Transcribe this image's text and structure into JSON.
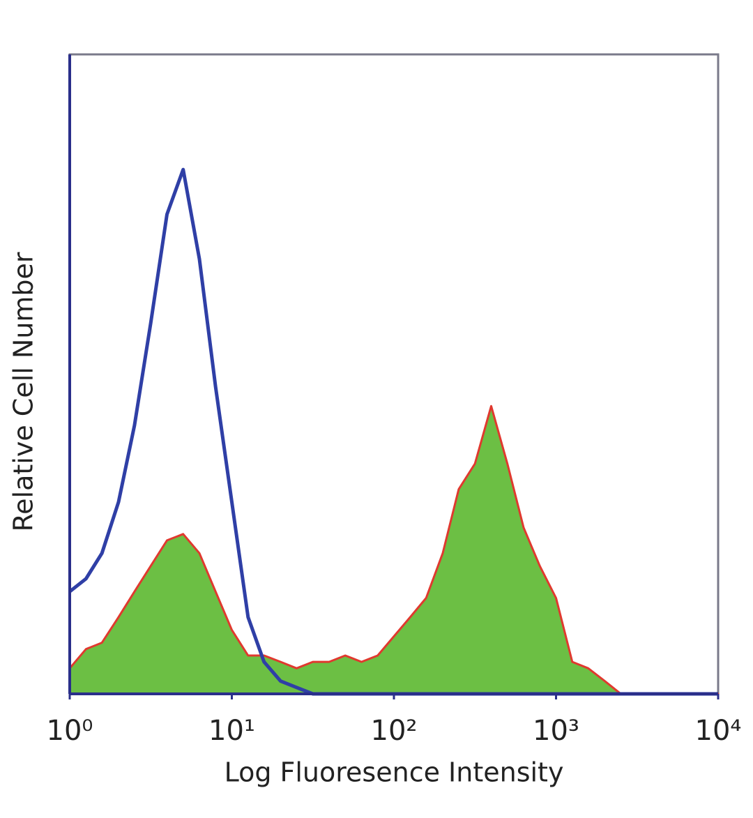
{
  "chart_data": {
    "type": "histogram-overlay",
    "xlabel": "Log Fluoresence Intensity",
    "ylabel": "Relative Cell Number",
    "xscale": "log",
    "xlim": [
      1,
      10000
    ],
    "ylim": [
      0,
      100
    ],
    "xticks": [
      {
        "value": 1,
        "label": "10⁰"
      },
      {
        "value": 10,
        "label": "10¹"
      },
      {
        "value": 100,
        "label": "10²"
      },
      {
        "value": 1000,
        "label": "10³"
      },
      {
        "value": 10000,
        "label": "10⁴"
      }
    ],
    "x": [
      1,
      1.26,
      1.58,
      2,
      2.51,
      3.16,
      3.98,
      5.01,
      6.31,
      7.94,
      10,
      12.6,
      15.8,
      20,
      25.1,
      31.6,
      39.8,
      50.1,
      63.1,
      79.4,
      100,
      126,
      158,
      200,
      251,
      316,
      398,
      501,
      631,
      794,
      1000,
      1260,
      1580,
      2000,
      2510,
      3160,
      3980,
      5010,
      6310,
      7940,
      10000
    ],
    "series": [
      {
        "color": "#6cbf44",
        "edgecolor": "#e0392f",
        "fill": true,
        "values": [
          4,
          7,
          8,
          12,
          16,
          20,
          24,
          25,
          22,
          16,
          10,
          6,
          6,
          5,
          4,
          5,
          5,
          6,
          5,
          6,
          9,
          12,
          15,
          22,
          32,
          36,
          45,
          36,
          26,
          20,
          15,
          5,
          4,
          2,
          0,
          0,
          0,
          0,
          0,
          0,
          0
        ]
      },
      {
        "color": "#2f3fa6",
        "fill": false,
        "values": [
          16,
          18,
          22,
          30,
          42,
          58,
          75,
          82,
          68,
          48,
          30,
          12,
          5,
          2,
          1,
          0,
          0,
          0,
          0,
          0,
          0,
          0,
          0,
          0,
          0,
          0,
          0,
          0,
          0,
          0,
          0,
          0,
          0,
          0,
          0,
          0,
          0,
          0,
          0,
          0,
          0
        ]
      }
    ]
  }
}
